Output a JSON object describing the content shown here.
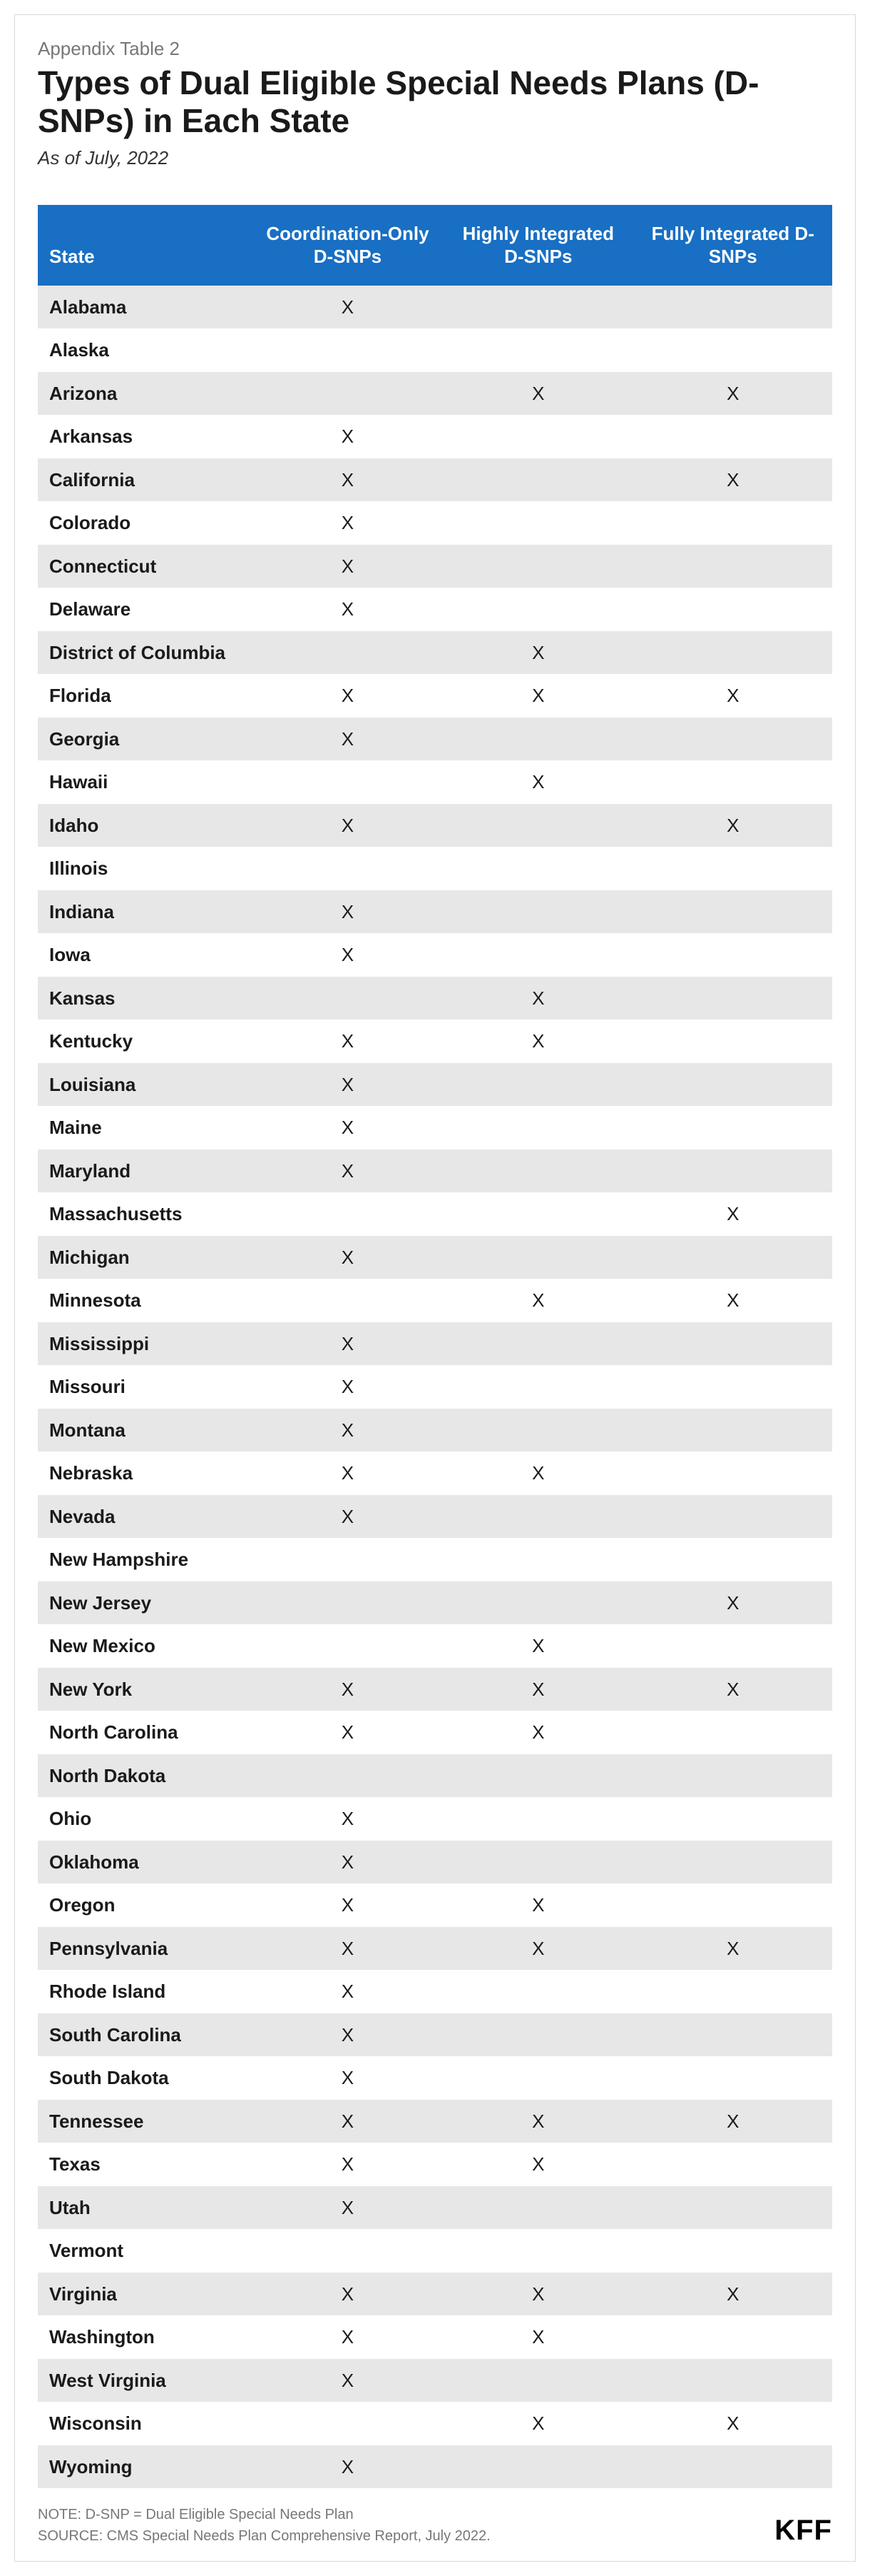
{
  "header": {
    "supertitle": "Appendix Table 2",
    "title": "Types of Dual Eligible Special Needs Plans (D-SNPs) in Each State",
    "subtitle": "As of July, 2022"
  },
  "table": {
    "columns": [
      "State",
      "Coordination-Only D-SNPs",
      "Highly Integrated D-SNPs",
      "Fully Integrated D-SNPs"
    ],
    "header_bg": "#186fc3",
    "header_text_color": "#ffffff",
    "row_odd_bg": "#e7e7e7",
    "row_even_bg": "#ffffff",
    "mark": "X",
    "rows": [
      {
        "state": "Alabama",
        "c1": true,
        "c2": false,
        "c3": false
      },
      {
        "state": "Alaska",
        "c1": false,
        "c2": false,
        "c3": false
      },
      {
        "state": "Arizona",
        "c1": false,
        "c2": true,
        "c3": true
      },
      {
        "state": "Arkansas",
        "c1": true,
        "c2": false,
        "c3": false
      },
      {
        "state": "California",
        "c1": true,
        "c2": false,
        "c3": true
      },
      {
        "state": "Colorado",
        "c1": true,
        "c2": false,
        "c3": false
      },
      {
        "state": "Connecticut",
        "c1": true,
        "c2": false,
        "c3": false
      },
      {
        "state": "Delaware",
        "c1": true,
        "c2": false,
        "c3": false
      },
      {
        "state": "District of Columbia",
        "c1": false,
        "c2": true,
        "c3": false
      },
      {
        "state": "Florida",
        "c1": true,
        "c2": true,
        "c3": true
      },
      {
        "state": "Georgia",
        "c1": true,
        "c2": false,
        "c3": false
      },
      {
        "state": "Hawaii",
        "c1": false,
        "c2": true,
        "c3": false
      },
      {
        "state": "Idaho",
        "c1": true,
        "c2": false,
        "c3": true
      },
      {
        "state": "Illinois",
        "c1": false,
        "c2": false,
        "c3": false
      },
      {
        "state": "Indiana",
        "c1": true,
        "c2": false,
        "c3": false
      },
      {
        "state": "Iowa",
        "c1": true,
        "c2": false,
        "c3": false
      },
      {
        "state": "Kansas",
        "c1": false,
        "c2": true,
        "c3": false
      },
      {
        "state": "Kentucky",
        "c1": true,
        "c2": true,
        "c3": false
      },
      {
        "state": "Louisiana",
        "c1": true,
        "c2": false,
        "c3": false
      },
      {
        "state": "Maine",
        "c1": true,
        "c2": false,
        "c3": false
      },
      {
        "state": "Maryland",
        "c1": true,
        "c2": false,
        "c3": false
      },
      {
        "state": "Massachusetts",
        "c1": false,
        "c2": false,
        "c3": true
      },
      {
        "state": "Michigan",
        "c1": true,
        "c2": false,
        "c3": false
      },
      {
        "state": "Minnesota",
        "c1": false,
        "c2": true,
        "c3": true
      },
      {
        "state": "Mississippi",
        "c1": true,
        "c2": false,
        "c3": false
      },
      {
        "state": "Missouri",
        "c1": true,
        "c2": false,
        "c3": false
      },
      {
        "state": "Montana",
        "c1": true,
        "c2": false,
        "c3": false
      },
      {
        "state": "Nebraska",
        "c1": true,
        "c2": true,
        "c3": false
      },
      {
        "state": "Nevada",
        "c1": true,
        "c2": false,
        "c3": false
      },
      {
        "state": "New Hampshire",
        "c1": false,
        "c2": false,
        "c3": false
      },
      {
        "state": "New Jersey",
        "c1": false,
        "c2": false,
        "c3": true
      },
      {
        "state": "New Mexico",
        "c1": false,
        "c2": true,
        "c3": false
      },
      {
        "state": "New York",
        "c1": true,
        "c2": true,
        "c3": true
      },
      {
        "state": "North Carolina",
        "c1": true,
        "c2": true,
        "c3": false
      },
      {
        "state": "North Dakota",
        "c1": false,
        "c2": false,
        "c3": false
      },
      {
        "state": "Ohio",
        "c1": true,
        "c2": false,
        "c3": false
      },
      {
        "state": "Oklahoma",
        "c1": true,
        "c2": false,
        "c3": false
      },
      {
        "state": "Oregon",
        "c1": true,
        "c2": true,
        "c3": false
      },
      {
        "state": "Pennsylvania",
        "c1": true,
        "c2": true,
        "c3": true
      },
      {
        "state": "Rhode Island",
        "c1": true,
        "c2": false,
        "c3": false
      },
      {
        "state": "South Carolina",
        "c1": true,
        "c2": false,
        "c3": false
      },
      {
        "state": "South Dakota",
        "c1": true,
        "c2": false,
        "c3": false
      },
      {
        "state": "Tennessee",
        "c1": true,
        "c2": true,
        "c3": true
      },
      {
        "state": "Texas",
        "c1": true,
        "c2": true,
        "c3": false
      },
      {
        "state": "Utah",
        "c1": true,
        "c2": false,
        "c3": false
      },
      {
        "state": "Vermont",
        "c1": false,
        "c2": false,
        "c3": false
      },
      {
        "state": "Virginia",
        "c1": true,
        "c2": true,
        "c3": true
      },
      {
        "state": "Washington",
        "c1": true,
        "c2": true,
        "c3": false
      },
      {
        "state": "West Virginia",
        "c1": true,
        "c2": false,
        "c3": false
      },
      {
        "state": "Wisconsin",
        "c1": false,
        "c2": true,
        "c3": true
      },
      {
        "state": "Wyoming",
        "c1": true,
        "c2": false,
        "c3": false
      }
    ]
  },
  "footer": {
    "note": "NOTE: D-SNP = Dual Eligible Special Needs Plan",
    "source": "SOURCE: CMS Special Needs Plan Comprehensive Report, July 2022.",
    "logo": "KFF"
  }
}
